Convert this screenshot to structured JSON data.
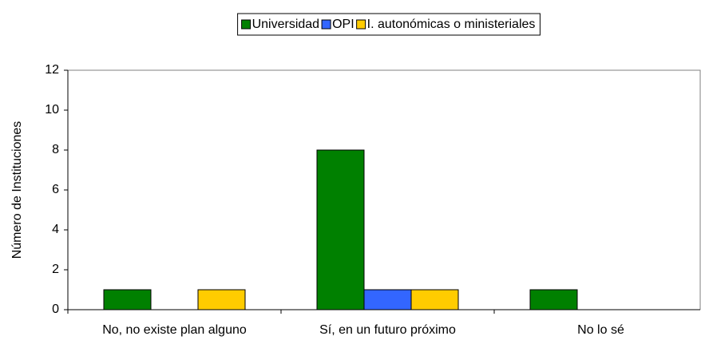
{
  "chart_data": {
    "type": "bar",
    "categories": [
      "No, no existe plan alguno",
      "Sí, en un futuro próximo",
      "No lo sé"
    ],
    "series": [
      {
        "name": "Universidad",
        "color": "#008000",
        "values": [
          1,
          8,
          1
        ]
      },
      {
        "name": "OPI",
        "color": "#3366ff",
        "values": [
          0,
          1,
          0
        ]
      },
      {
        "name": "I. autonómicas o ministeriales",
        "color": "#ffcc00",
        "values": [
          1,
          1,
          0
        ]
      }
    ],
    "ylabel": "Número de Instituciones",
    "ylim": [
      0,
      12
    ],
    "yticks": [
      0,
      2,
      4,
      6,
      8,
      10,
      12
    ],
    "grid": false,
    "legend": "top"
  }
}
